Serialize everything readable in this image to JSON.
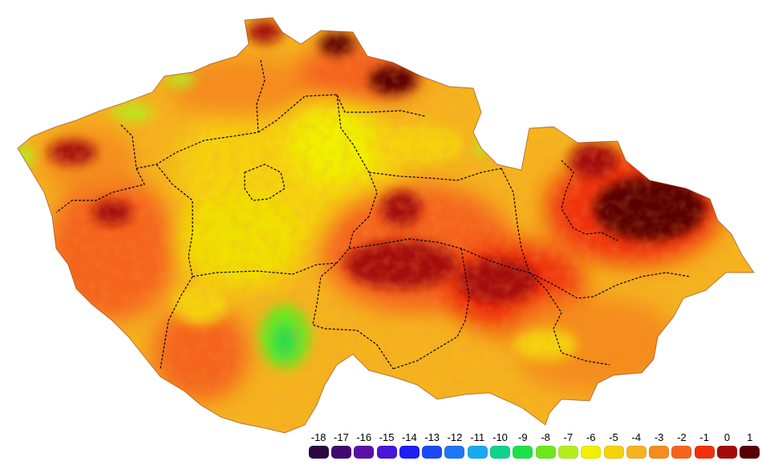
{
  "legend": {
    "items": [
      {
        "label": "-18",
        "color": "#2a0a3e"
      },
      {
        "label": "-17",
        "color": "#420a6e"
      },
      {
        "label": "-16",
        "color": "#5a10a8"
      },
      {
        "label": "-15",
        "color": "#4a16d8"
      },
      {
        "label": "-14",
        "color": "#1e1ef5"
      },
      {
        "label": "-13",
        "color": "#1a4af5"
      },
      {
        "label": "-12",
        "color": "#1e78f5"
      },
      {
        "label": "-11",
        "color": "#18aaf0"
      },
      {
        "label": "-10",
        "color": "#10d28c"
      },
      {
        "label": "-9",
        "color": "#1ee14a"
      },
      {
        "label": "-8",
        "color": "#6ee61e"
      },
      {
        "label": "-7",
        "color": "#b4ee1e"
      },
      {
        "label": "-6",
        "color": "#f0f000"
      },
      {
        "label": "-5",
        "color": "#f5d20a"
      },
      {
        "label": "-4",
        "color": "#f5b41e"
      },
      {
        "label": "-3",
        "color": "#f58c1e"
      },
      {
        "label": "-2",
        "color": "#f5641e"
      },
      {
        "label": "-1",
        "color": "#f0320a"
      },
      {
        "label": "0",
        "color": "#a50a0a"
      },
      {
        "label": "1",
        "color": "#5a0000"
      }
    ]
  }
}
